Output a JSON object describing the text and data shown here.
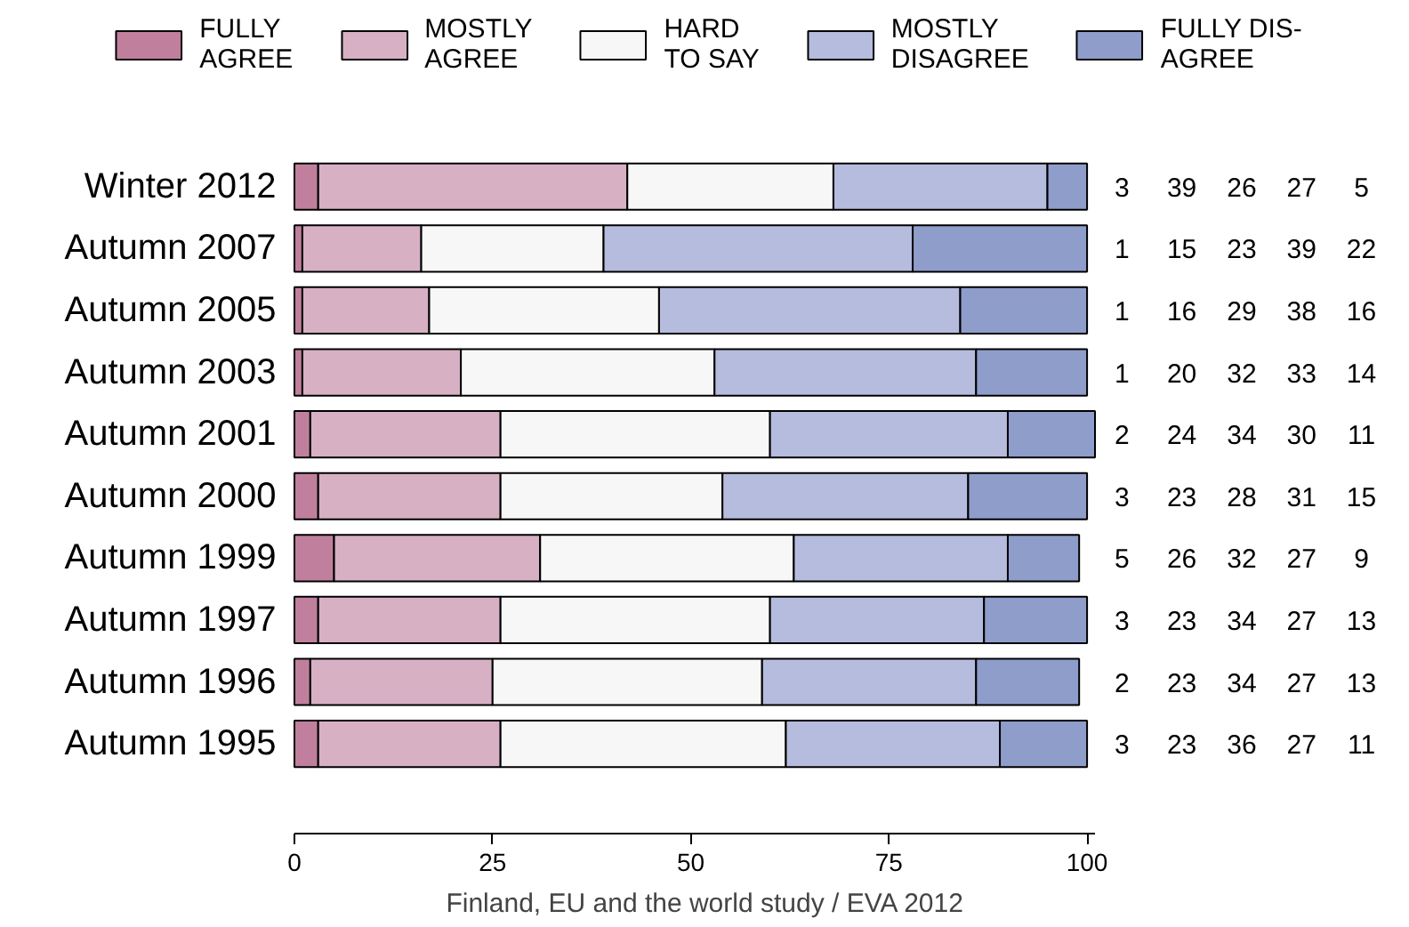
{
  "chart_data": {
    "type": "bar",
    "orientation": "horizontal",
    "stacked": true,
    "categories": [
      "Winter 2012",
      "Autumn 2007",
      "Autumn 2005",
      "Autumn 2003",
      "Autumn 2001",
      "Autumn 2000",
      "Autumn 1999",
      "Autumn 1997",
      "Autumn 1996",
      "Autumn 1995"
    ],
    "series": [
      {
        "name": "FULLY\nAGREE",
        "color": "#c0809d",
        "values": [
          3,
          1,
          1,
          1,
          2,
          3,
          5,
          3,
          2,
          3
        ]
      },
      {
        "name": "MOSTLY\nAGREE",
        "color": "#d7b0c4",
        "values": [
          39,
          15,
          16,
          20,
          24,
          23,
          26,
          23,
          23,
          23
        ]
      },
      {
        "name": "HARD\nTO SAY",
        "color": "#f7f7f7",
        "values": [
          26,
          23,
          29,
          32,
          34,
          28,
          32,
          34,
          34,
          36
        ]
      },
      {
        "name": "MOSTLY\nDISAGREE",
        "color": "#b5bcdd",
        "values": [
          27,
          39,
          38,
          33,
          30,
          31,
          27,
          27,
          27,
          27
        ]
      },
      {
        "name": "FULLY DIS-\nAGREE",
        "color": "#8f9dcb",
        "values": [
          5,
          22,
          16,
          14,
          11,
          15,
          9,
          13,
          13,
          11
        ]
      }
    ],
    "xlim": [
      0,
      101
    ],
    "xticks": [
      0,
      25,
      50,
      75,
      100
    ],
    "grid": false,
    "legend": "top",
    "data_labels": true,
    "annotations": [
      "Finland, EU and the world study / EVA 2012"
    ]
  }
}
